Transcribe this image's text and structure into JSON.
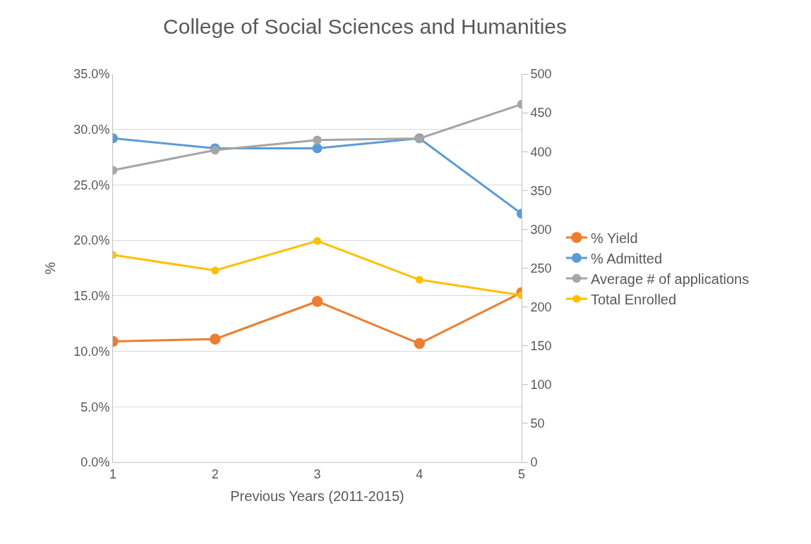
{
  "chart_data": {
    "type": "line",
    "title": "College of Social Sciences and Humanities",
    "xlabel": "Previous Years (2011-2015)",
    "ylabel": "%",
    "categories": [
      "1",
      "2",
      "3",
      "4",
      "5"
    ],
    "series": [
      {
        "name": "% Yield",
        "color": "#ed7d31",
        "values": [
          10.9,
          11.1,
          14.5,
          10.7,
          15.3
        ]
      },
      {
        "name": "% Admitted",
        "color": "#5b9bd5",
        "values": [
          29.2,
          28.3,
          28.3,
          29.2,
          22.4
        ]
      },
      {
        "name": "Average # of applications",
        "color": "#a5a5a5",
        "axis": "y2",
        "values": [
          376,
          402,
          415,
          417,
          461
        ]
      },
      {
        "name": "Total Enrolled",
        "color": "#ffc000",
        "axis": "y2",
        "values": [
          267,
          247,
          285,
          235,
          215
        ]
      }
    ],
    "ylim": [
      0,
      35
    ],
    "yticks": [
      {
        "value": 0,
        "label": "0.0%"
      },
      {
        "value": 5,
        "label": "5.0%"
      },
      {
        "value": 10,
        "label": "10.0%"
      },
      {
        "value": 15,
        "label": "15.0%"
      },
      {
        "value": 20,
        "label": "20.0%"
      },
      {
        "value": 25,
        "label": "25.0%"
      },
      {
        "value": 30,
        "label": "30.0%"
      },
      {
        "value": 35,
        "label": "35.0%"
      }
    ],
    "y2lim": [
      0,
      500
    ],
    "y2ticks": [
      0,
      50,
      100,
      150,
      200,
      250,
      300,
      350,
      400,
      450,
      500
    ],
    "grid": "y",
    "legend": "right",
    "marker": "circle",
    "line_style": "solid"
  }
}
